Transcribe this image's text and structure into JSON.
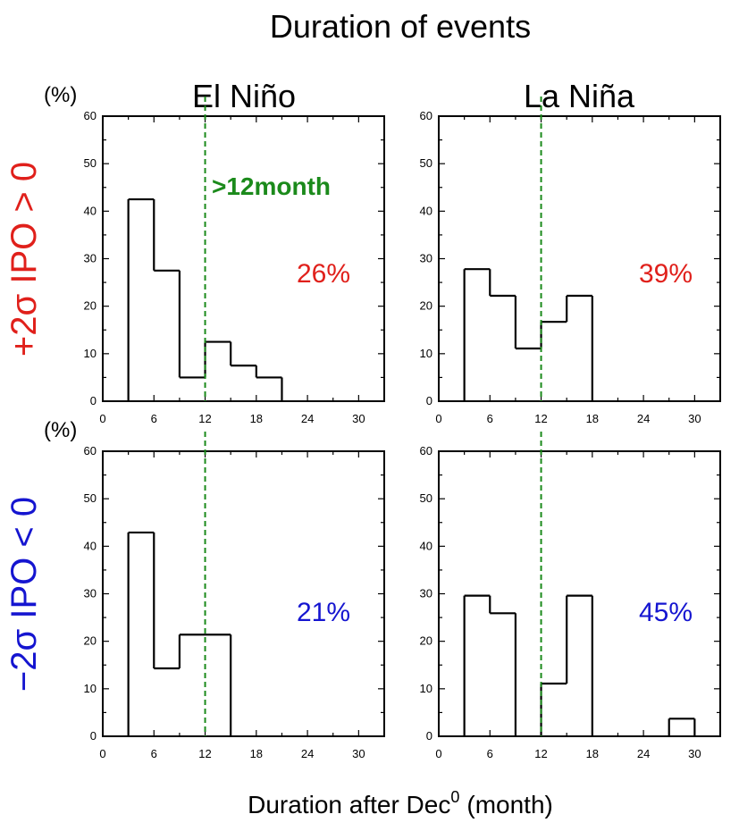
{
  "figure": {
    "title": "Duration of events",
    "xlabel": "Duration after Dec",
    "xlabel_superscript": "0",
    "xlabel_unit": "(month)",
    "column_titles": [
      "El Niño",
      "La Niña"
    ],
    "row_labels": [
      "+2σ IPO > 0",
      "−2σ IPO < 0"
    ],
    "percent_unit": "(%)",
    "annotation": ">12month",
    "colors": {
      "positive": "#e0201b",
      "negative": "#1515d0",
      "threshold": "#1b8a1b",
      "bars": "#000000"
    }
  },
  "chart_data": [
    {
      "type": "bar",
      "panel": "El Niño, +2σ IPO > 0",
      "x_bin_edges": [
        3,
        6,
        9,
        12,
        15,
        18,
        21
      ],
      "values": [
        42.5,
        27.5,
        5,
        12.5,
        7.5,
        5
      ],
      "percentage_label": "26%",
      "threshold_x": 12,
      "xlim": [
        0,
        33
      ],
      "ylim": [
        0,
        60
      ],
      "xticks": [
        0,
        6,
        12,
        18,
        24,
        30
      ],
      "yticks": [
        0,
        10,
        20,
        30,
        40,
        50,
        60
      ]
    },
    {
      "type": "bar",
      "panel": "La Niña, +2σ IPO > 0",
      "x_bin_edges": [
        3,
        6,
        9,
        12,
        15,
        18
      ],
      "values": [
        27.8,
        22.2,
        11.1,
        16.7,
        22.2
      ],
      "percentage_label": "39%",
      "threshold_x": 12,
      "xlim": [
        0,
        33
      ],
      "ylim": [
        0,
        60
      ],
      "xticks": [
        0,
        6,
        12,
        18,
        24,
        30
      ],
      "yticks": [
        0,
        10,
        20,
        30,
        40,
        50,
        60
      ]
    },
    {
      "type": "bar",
      "panel": "El Niño, −2σ IPO < 0",
      "x_bin_edges": [
        3,
        6,
        9,
        12,
        15
      ],
      "values": [
        42.9,
        14.3,
        21.4,
        21.4
      ],
      "percentage_label": "21%",
      "threshold_x": 12,
      "xlim": [
        0,
        33
      ],
      "ylim": [
        0,
        60
      ],
      "xticks": [
        0,
        6,
        12,
        18,
        24,
        30
      ],
      "yticks": [
        0,
        10,
        20,
        30,
        40,
        50,
        60
      ]
    },
    {
      "type": "bar",
      "panel": "La Niña, −2σ IPO < 0",
      "x_bin_edges": [
        3,
        6,
        9,
        12,
        15,
        18,
        21,
        24,
        27,
        30
      ],
      "values": [
        29.6,
        25.9,
        0,
        11.1,
        29.6,
        0,
        0,
        0,
        3.7
      ],
      "percentage_label": "45%",
      "threshold_x": 12,
      "xlim": [
        0,
        33
      ],
      "ylim": [
        0,
        60
      ],
      "xticks": [
        0,
        6,
        12,
        18,
        24,
        30
      ],
      "yticks": [
        0,
        10,
        20,
        30,
        40,
        50,
        60
      ]
    }
  ]
}
